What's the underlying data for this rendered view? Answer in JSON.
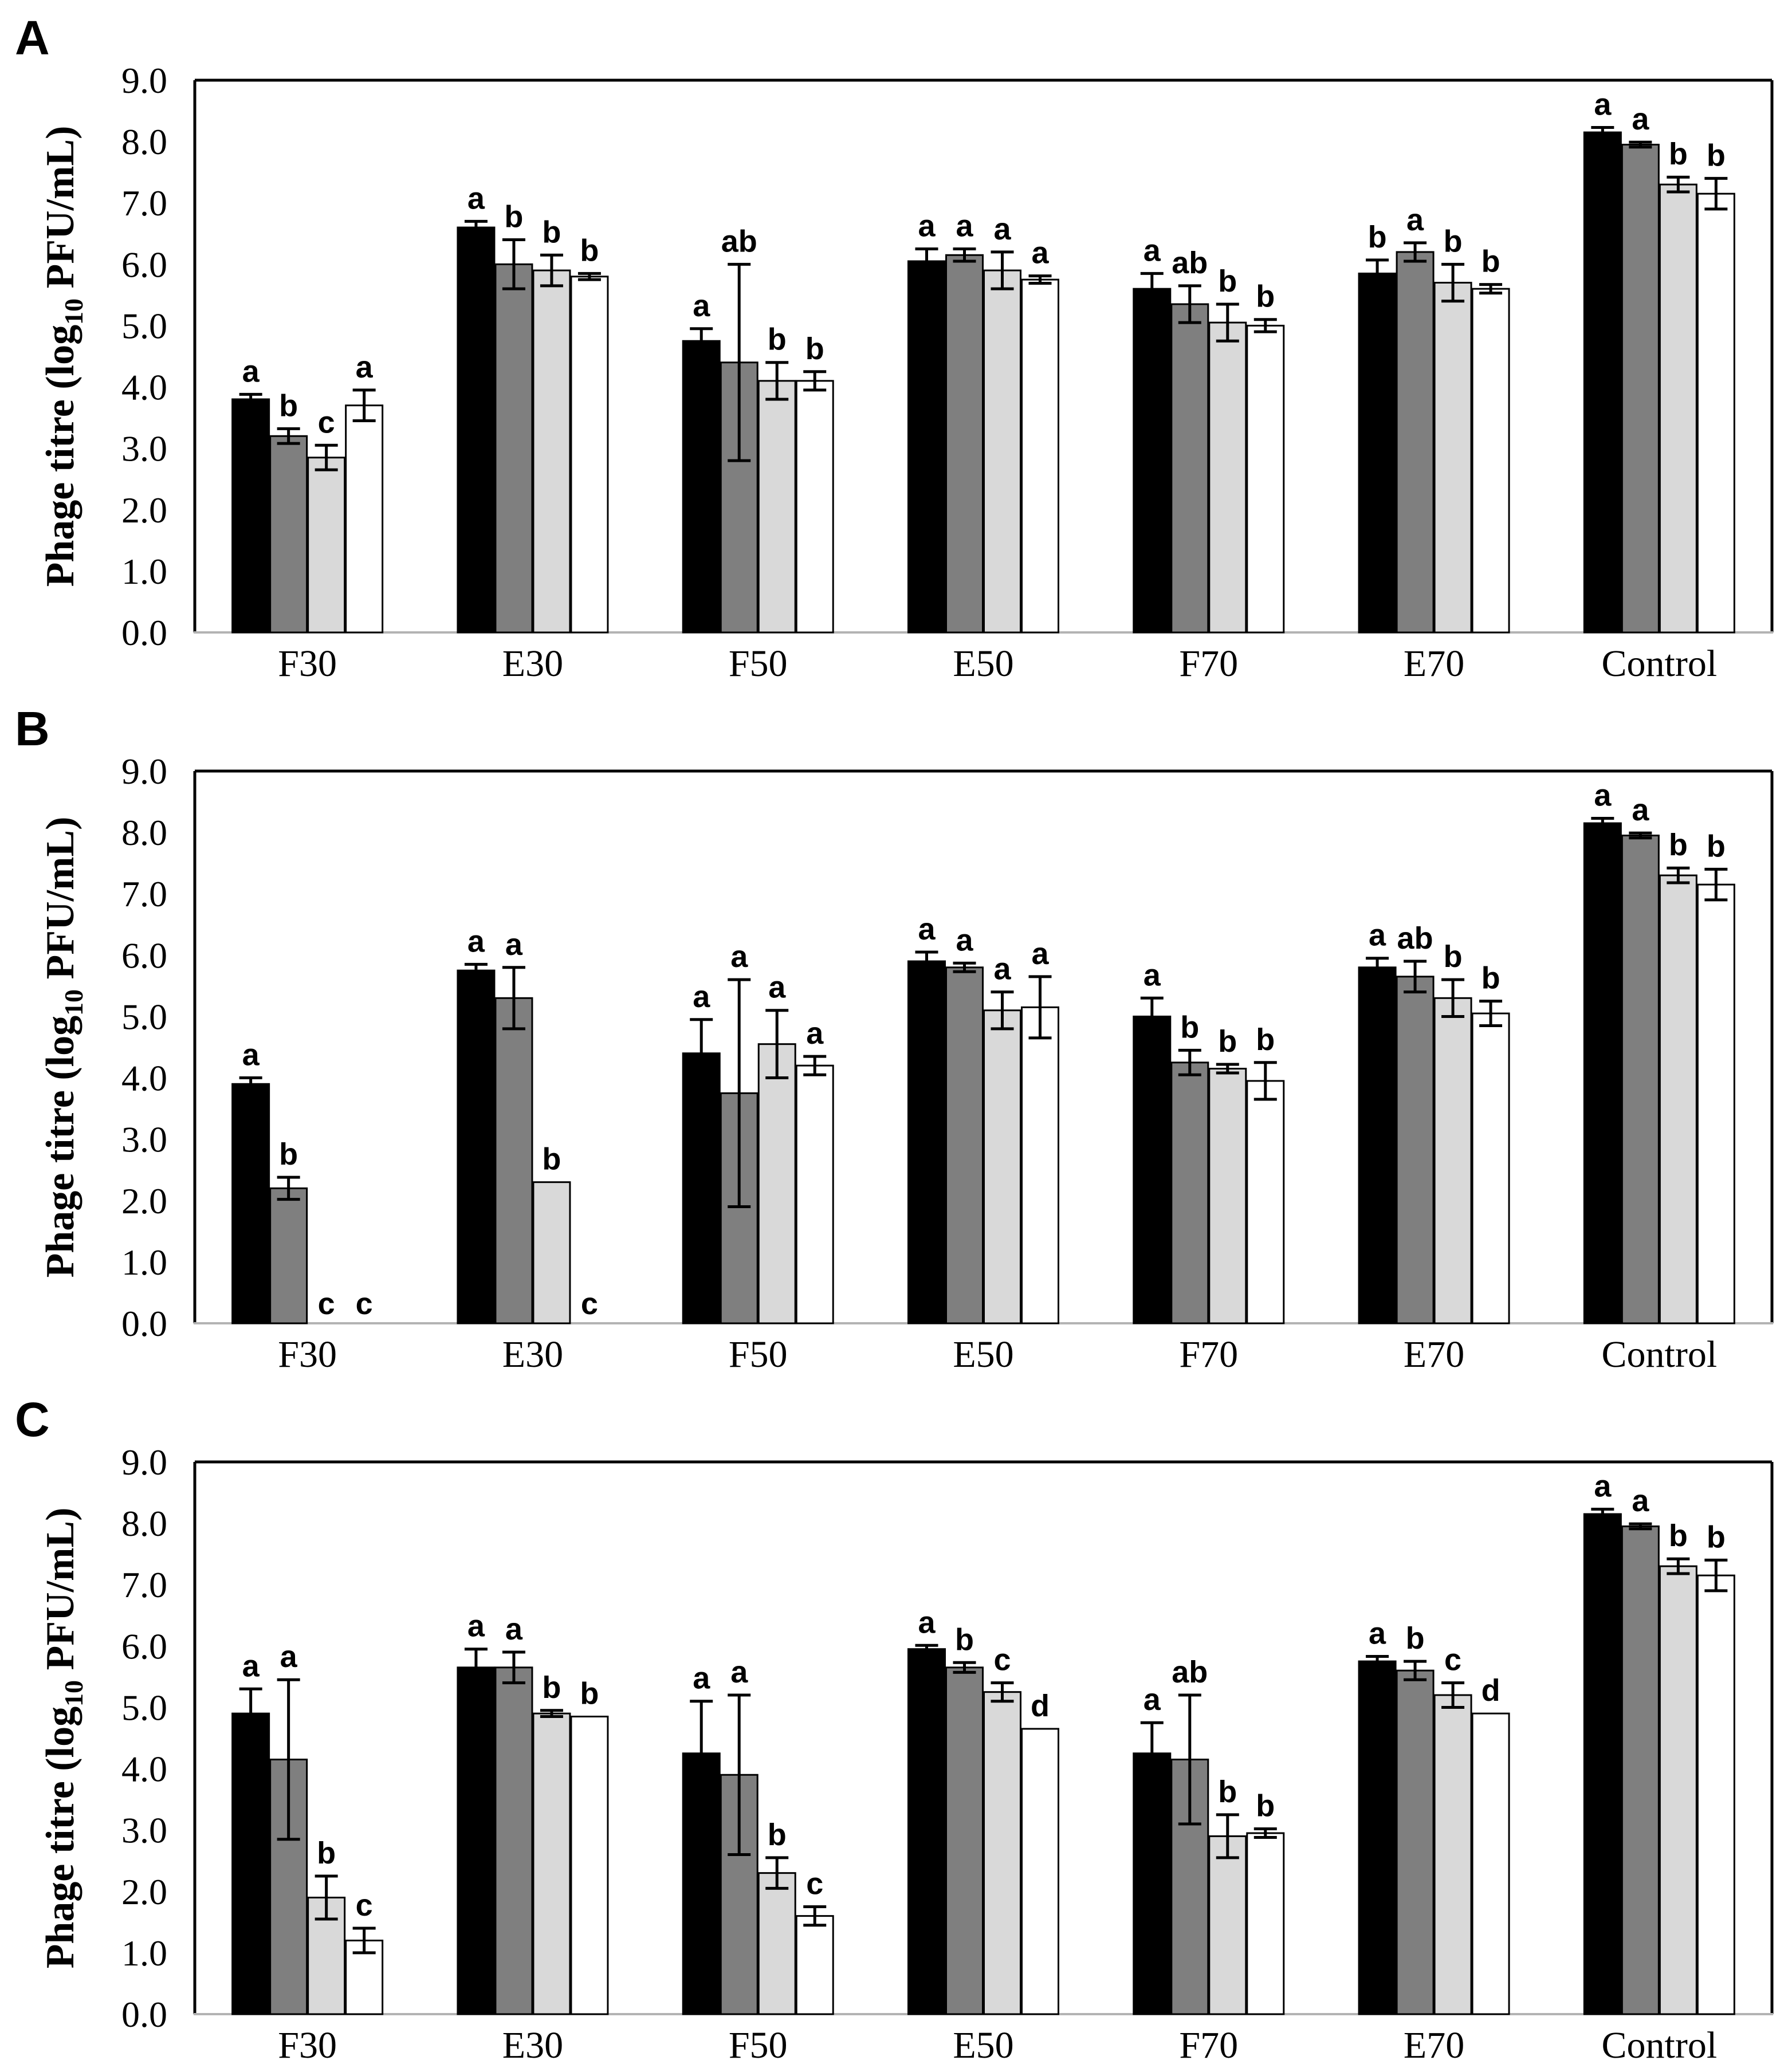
{
  "figure": {
    "background": "#ffffff",
    "frame_color": "#000000",
    "baseline_color": "#b3b3b3",
    "error_bar_color": "#000000",
    "bar_border_color": "#000000",
    "bar_colors": [
      "#000000",
      "#7f7f7f",
      "#d9d9d9",
      "#ffffff"
    ],
    "series_names": [
      "black-bar",
      "dark-gray-bar",
      "light-gray-bar",
      "white-bar"
    ]
  },
  "chart_data": [
    {
      "type": "bar",
      "panel": "A",
      "ylabel": "Phage titre (log10 PFU/mL)",
      "ylabel_parts": [
        "Phage titre (log",
        "10",
        " PFU/mL)"
      ],
      "ylim": [
        0,
        9
      ],
      "yticks": [
        "9.0",
        "8.0",
        "7.0",
        "6.0",
        "5.0",
        "4.0",
        "3.0",
        "2.0",
        "1.0",
        "0.0"
      ],
      "grid": false,
      "legend_position": "none",
      "categories": [
        "F30",
        "E30",
        "F50",
        "E50",
        "F70",
        "E70",
        "Control"
      ],
      "series": [
        {
          "name": "black-bar",
          "color": "#000000",
          "values": [
            3.8,
            6.6,
            4.75,
            6.05,
            5.6,
            5.85,
            8.15
          ],
          "errors": [
            0.08,
            0.1,
            0.2,
            0.2,
            0.25,
            0.22,
            0.08
          ],
          "letters": [
            "a",
            "a",
            "a",
            "a",
            "a",
            "b",
            "a"
          ]
        },
        {
          "name": "dark-gray-bar",
          "color": "#7f7f7f",
          "values": [
            3.2,
            6.0,
            4.4,
            6.15,
            5.35,
            6.2,
            7.95
          ],
          "errors": [
            0.12,
            0.4,
            1.6,
            0.1,
            0.3,
            0.15,
            0.04
          ],
          "letters": [
            "b",
            "b",
            "ab",
            "a",
            "ab",
            "a",
            "a"
          ]
        },
        {
          "name": "light-gray-bar",
          "color": "#d9d9d9",
          "values": [
            2.85,
            5.9,
            4.1,
            5.9,
            5.05,
            5.7,
            7.3
          ],
          "errors": [
            0.2,
            0.25,
            0.3,
            0.3,
            0.3,
            0.3,
            0.12
          ],
          "letters": [
            "c",
            "b",
            "b",
            "a",
            "b",
            "b",
            "b"
          ]
        },
        {
          "name": "white-bar",
          "color": "#ffffff",
          "values": [
            3.7,
            5.8,
            4.1,
            5.75,
            5.0,
            5.6,
            7.15
          ],
          "errors": [
            0.25,
            0.05,
            0.15,
            0.06,
            0.1,
            0.07,
            0.25
          ],
          "letters": [
            "a",
            "b",
            "b",
            "a",
            "b",
            "b",
            "b"
          ]
        }
      ]
    },
    {
      "type": "bar",
      "panel": "B",
      "ylabel": "Phage titre (log10 PFU/mL)",
      "ylabel_parts": [
        "Phage titre (log",
        "10",
        " PFU/mL)"
      ],
      "ylim": [
        0,
        9
      ],
      "yticks": [
        "9.0",
        "8.0",
        "7.0",
        "6.0",
        "5.0",
        "4.0",
        "3.0",
        "2.0",
        "1.0",
        "0.0"
      ],
      "grid": false,
      "legend_position": "none",
      "categories": [
        "F30",
        "E30",
        "F50",
        "E50",
        "F70",
        "E70",
        "Control"
      ],
      "series": [
        {
          "name": "black-bar",
          "color": "#000000",
          "values": [
            3.9,
            5.75,
            4.4,
            5.9,
            5.0,
            5.8,
            8.15
          ],
          "errors": [
            0.1,
            0.1,
            0.55,
            0.15,
            0.3,
            0.15,
            0.08
          ],
          "letters": [
            "a",
            "a",
            "a",
            "a",
            "a",
            "a",
            "a"
          ]
        },
        {
          "name": "dark-gray-bar",
          "color": "#7f7f7f",
          "values": [
            2.2,
            5.3,
            3.75,
            5.8,
            4.25,
            5.65,
            7.95
          ],
          "errors": [
            0.18,
            0.5,
            1.85,
            0.07,
            0.2,
            0.25,
            0.04
          ],
          "letters": [
            "b",
            "a",
            "a",
            "a",
            "b",
            "ab",
            "a"
          ]
        },
        {
          "name": "light-gray-bar",
          "color": "#d9d9d9",
          "values": [
            0,
            2.3,
            4.55,
            5.1,
            4.15,
            5.3,
            7.3
          ],
          "errors": [
            0,
            0,
            0.55,
            0.3,
            0.07,
            0.3,
            0.12
          ],
          "letters": [
            "c",
            "b",
            "a",
            "a",
            "b",
            "b",
            "b"
          ]
        },
        {
          "name": "white-bar",
          "color": "#ffffff",
          "values": [
            0,
            0,
            4.2,
            5.15,
            3.95,
            5.05,
            7.15
          ],
          "errors": [
            0,
            0,
            0.15,
            0.5,
            0.3,
            0.2,
            0.25
          ],
          "letters": [
            "c",
            "c",
            "a",
            "a",
            "b",
            "b",
            "b"
          ]
        }
      ]
    },
    {
      "type": "bar",
      "panel": "C",
      "ylabel": "Phage titre (log10 PFU/mL)",
      "ylabel_parts": [
        "Phage titre (log",
        "10",
        " PFU/mL)"
      ],
      "ylim": [
        0,
        9
      ],
      "yticks": [
        "9.0",
        "8.0",
        "7.0",
        "6.0",
        "5.0",
        "4.0",
        "3.0",
        "2.0",
        "1.0",
        "0.0"
      ],
      "grid": false,
      "legend_position": "none",
      "categories": [
        "F30",
        "E30",
        "F50",
        "E50",
        "F70",
        "E70",
        "Control"
      ],
      "series": [
        {
          "name": "black-bar",
          "color": "#000000",
          "values": [
            4.9,
            5.65,
            4.25,
            5.95,
            4.25,
            5.75,
            8.15
          ],
          "errors": [
            0.4,
            0.3,
            0.85,
            0.06,
            0.5,
            0.08,
            0.08
          ],
          "letters": [
            "a",
            "a",
            "a",
            "a",
            "a",
            "a",
            "a"
          ]
        },
        {
          "name": "dark-gray-bar",
          "color": "#7f7f7f",
          "values": [
            4.15,
            5.65,
            3.9,
            5.65,
            4.15,
            5.6,
            7.95
          ],
          "errors": [
            1.3,
            0.25,
            1.3,
            0.08,
            1.05,
            0.15,
            0.04
          ],
          "letters": [
            "a",
            "a",
            "a",
            "b",
            "ab",
            "b",
            "a"
          ]
        },
        {
          "name": "light-gray-bar",
          "color": "#d9d9d9",
          "values": [
            1.9,
            4.9,
            2.3,
            5.25,
            2.9,
            5.2,
            7.3
          ],
          "errors": [
            0.35,
            0.05,
            0.25,
            0.15,
            0.35,
            0.2,
            0.12
          ],
          "letters": [
            "b",
            "b",
            "b",
            "c",
            "b",
            "c",
            "b"
          ]
        },
        {
          "name": "white-bar",
          "color": "#ffffff",
          "values": [
            1.2,
            4.85,
            1.6,
            4.65,
            2.95,
            4.9,
            7.15
          ],
          "errors": [
            0.2,
            0,
            0.15,
            0,
            0.07,
            0,
            0.25
          ],
          "letters": [
            "c",
            "b",
            "c",
            "d",
            "b",
            "d",
            "b"
          ]
        }
      ]
    }
  ]
}
